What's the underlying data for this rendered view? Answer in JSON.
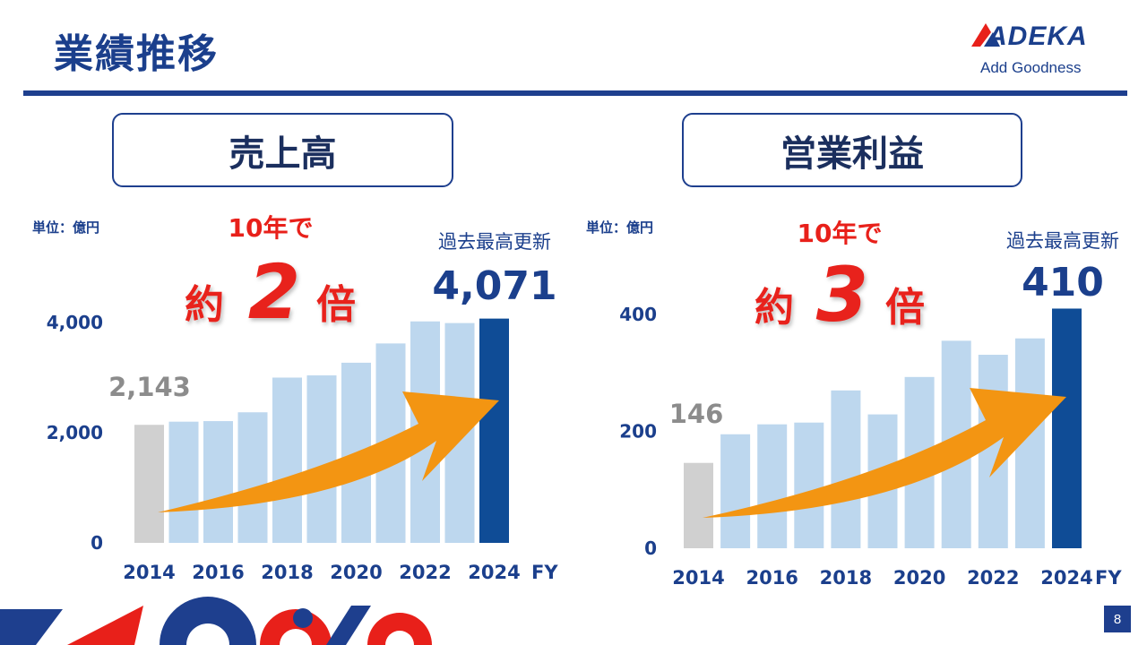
{
  "page": {
    "title": "業績推移",
    "page_number": "8",
    "logo": {
      "word": "ADEKA",
      "tagline": "Add Goodness"
    },
    "colors": {
      "navy": "#1e3f8e",
      "highlight": "#0f4c96",
      "light_bar": "#bdd7ee",
      "grey_bar": "#d0d0d0",
      "arrow": "#f39512",
      "red": "#e8201a"
    }
  },
  "panels": {
    "sales": {
      "heading": "売上高",
      "unit": "単位：億円",
      "callout_top": "10年で",
      "callout_yaku": "約",
      "callout_num": "2",
      "callout_bai": "倍",
      "record_label": "過去最高更新",
      "record_value": "4,071",
      "start_value": "2,143",
      "fy": "FY"
    },
    "profit": {
      "heading": "営業利益",
      "unit": "単位：億円",
      "callout_top": "10年で",
      "callout_yaku": "約",
      "callout_num": "3",
      "callout_bai": "倍",
      "record_label": "過去最高更新",
      "record_value": "410",
      "start_value": "146",
      "fy": "FY"
    }
  },
  "chart_data": [
    {
      "type": "bar",
      "title": "売上高",
      "categories": [
        "2014",
        "2015",
        "2016",
        "2017",
        "2018",
        "2019",
        "2020",
        "2021",
        "2022",
        "2023",
        "2024"
      ],
      "xtick_labels": [
        "2014",
        "2016",
        "2018",
        "2020",
        "2022",
        "2024"
      ],
      "values": [
        2143,
        2200,
        2210,
        2370,
        3000,
        3040,
        3270,
        3620,
        4020,
        3990,
        4071
      ],
      "ylim": [
        0,
        4000
      ],
      "yticks": [
        "0",
        "2,000",
        "4,000"
      ],
      "xlabel": "FY",
      "ylabel": "単位：億円",
      "grid": false
    },
    {
      "type": "bar",
      "title": "営業利益",
      "categories": [
        "2014",
        "2015",
        "2016",
        "2017",
        "2018",
        "2019",
        "2020",
        "2021",
        "2022",
        "2023",
        "2024"
      ],
      "xtick_labels": [
        "2014",
        "2016",
        "2018",
        "2020",
        "2022",
        "2024"
      ],
      "values": [
        146,
        195,
        212,
        215,
        270,
        229,
        293,
        355,
        331,
        359,
        410
      ],
      "ylim": [
        0,
        400
      ],
      "yticks": [
        "0",
        "200",
        "400"
      ],
      "xlabel": "FY",
      "ylabel": "単位：億円",
      "grid": false
    }
  ]
}
